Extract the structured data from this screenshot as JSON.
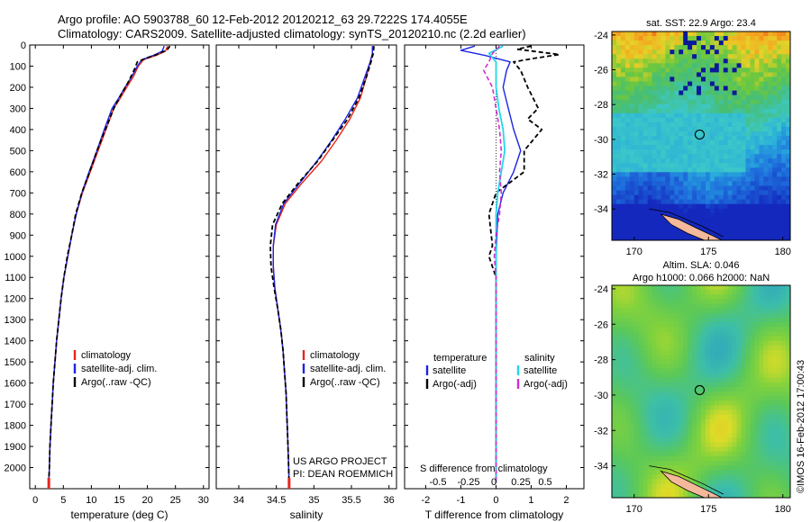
{
  "header": {
    "line1": "Argo profile: AO 5903788_60 12-Feb-2012 20120212_63 29.7222S 174.4055E",
    "line2": "Climatology: CARS2009. Satellite-adjusted climatology: synTS_20120210.nc (2.2d earlier)"
  },
  "colors": {
    "climatology": "#e8251b",
    "satellite": "#1c25e3",
    "argo": "#000000",
    "salinity_satellite": "#22d8e8",
    "salinity_argo": "#d12ed1",
    "land": "#f4b89a"
  },
  "chart_data": [
    {
      "id": "temperature",
      "type": "line",
      "xlabel": "temperature (deg C)",
      "xlim": [
        -1,
        31
      ],
      "xticks": [
        0,
        5,
        10,
        15,
        20,
        25,
        30
      ],
      "ylim": [
        2100,
        0
      ],
      "yticks": [
        0,
        100,
        200,
        300,
        400,
        500,
        600,
        700,
        800,
        900,
        1000,
        1100,
        1200,
        1300,
        1400,
        1500,
        1600,
        1700,
        1800,
        1900,
        2000
      ],
      "legend": [
        "climatology",
        "satellite-adj. clim.",
        "Argo(..raw -QC)"
      ],
      "series": [
        {
          "name": "climatology",
          "style": "red",
          "values": [
            [
              23.6,
              5
            ],
            [
              23.2,
              30
            ],
            [
              21.5,
              50
            ],
            [
              19.3,
              70
            ],
            [
              18.4,
              100
            ],
            [
              17.5,
              150
            ],
            [
              16.3,
              200
            ],
            [
              15.2,
              250
            ],
            [
              14.0,
              300
            ],
            [
              12.6,
              400
            ],
            [
              11.2,
              500
            ],
            [
              9.8,
              600
            ],
            [
              8.4,
              700
            ],
            [
              7.3,
              800
            ],
            [
              6.5,
              900
            ],
            [
              5.8,
              1000
            ],
            [
              5.1,
              1100
            ],
            [
              4.6,
              1200
            ],
            [
              4.2,
              1300
            ],
            [
              3.8,
              1400
            ],
            [
              3.5,
              1500
            ],
            [
              3.2,
              1600
            ],
            [
              3.0,
              1700
            ],
            [
              2.8,
              1800
            ],
            [
              2.6,
              1900
            ],
            [
              2.5,
              2000
            ],
            [
              2.4,
              2070
            ]
          ]
        },
        {
          "name": "satellite-adj. clim.",
          "style": "blue",
          "values": [
            [
              23.0,
              5
            ],
            [
              22.6,
              30
            ],
            [
              21.0,
              50
            ],
            [
              19.0,
              70
            ],
            [
              18.2,
              100
            ],
            [
              17.2,
              150
            ],
            [
              16.0,
              200
            ],
            [
              14.9,
              250
            ],
            [
              13.7,
              300
            ],
            [
              12.3,
              400
            ],
            [
              11.0,
              500
            ],
            [
              9.6,
              600
            ],
            [
              8.3,
              700
            ],
            [
              7.3,
              800
            ],
            [
              6.5,
              900
            ],
            [
              5.8,
              1000
            ],
            [
              5.1,
              1100
            ],
            [
              4.6,
              1200
            ],
            [
              4.2,
              1300
            ],
            [
              3.8,
              1400
            ],
            [
              3.5,
              1500
            ],
            [
              3.2,
              1600
            ],
            [
              3.0,
              1700
            ],
            [
              2.8,
              1800
            ],
            [
              2.6,
              1900
            ],
            [
              2.5,
              2000
            ],
            [
              2.4,
              2070
            ]
          ]
        },
        {
          "name": "Argo(..raw -QC)",
          "style": "black-dashed",
          "values": [
            [
              24.0,
              5
            ],
            [
              23.6,
              20
            ],
            [
              22.2,
              40
            ],
            [
              20.0,
              60
            ],
            [
              18.2,
              80
            ],
            [
              17.6,
              120
            ],
            [
              16.5,
              180
            ],
            [
              15.2,
              240
            ],
            [
              14.0,
              300
            ],
            [
              12.5,
              400
            ],
            [
              11.0,
              500
            ],
            [
              9.7,
              600
            ],
            [
              8.3,
              700
            ],
            [
              7.2,
              800
            ],
            [
              6.5,
              900
            ],
            [
              5.7,
              1000
            ],
            [
              5.1,
              1100
            ],
            [
              4.6,
              1200
            ],
            [
              4.2,
              1300
            ],
            [
              3.8,
              1400
            ],
            [
              3.5,
              1500
            ],
            [
              3.2,
              1600
            ],
            [
              3.0,
              1700
            ],
            [
              2.8,
              1800
            ],
            [
              2.6,
              1900
            ],
            [
              2.5,
              2000
            ],
            [
              2.4,
              2070
            ]
          ]
        }
      ]
    },
    {
      "id": "salinity",
      "type": "line",
      "xlabel": "salinity",
      "xlim": [
        33.7,
        36.1
      ],
      "xticks": [
        34,
        34.5,
        35,
        35.5,
        36
      ],
      "ylim": [
        2100,
        0
      ],
      "legend": [
        "climatology",
        "satellite-adj. clim.",
        "Argo(..raw -QC)"
      ],
      "annotation": [
        "US ARGO PROJECT",
        "PI: DEAN ROEMMICH"
      ],
      "series": [
        {
          "name": "climatology",
          "style": "red",
          "values": [
            [
              35.78,
              5
            ],
            [
              35.78,
              40
            ],
            [
              35.75,
              80
            ],
            [
              35.7,
              150
            ],
            [
              35.62,
              250
            ],
            [
              35.48,
              350
            ],
            [
              35.3,
              450
            ],
            [
              35.1,
              550
            ],
            [
              34.85,
              650
            ],
            [
              34.62,
              750
            ],
            [
              34.5,
              850
            ],
            [
              34.46,
              950
            ],
            [
              34.46,
              1050
            ],
            [
              34.48,
              1150
            ],
            [
              34.52,
              1250
            ],
            [
              34.56,
              1350
            ],
            [
              34.59,
              1450
            ],
            [
              34.61,
              1550
            ],
            [
              34.63,
              1650
            ],
            [
              34.64,
              1750
            ],
            [
              34.65,
              1850
            ],
            [
              34.66,
              1950
            ],
            [
              34.67,
              2070
            ]
          ]
        },
        {
          "name": "satellite-adj. clim.",
          "style": "blue",
          "values": [
            [
              35.78,
              5
            ],
            [
              35.78,
              40
            ],
            [
              35.75,
              80
            ],
            [
              35.68,
              150
            ],
            [
              35.58,
              250
            ],
            [
              35.42,
              350
            ],
            [
              35.24,
              450
            ],
            [
              35.04,
              550
            ],
            [
              34.82,
              650
            ],
            [
              34.6,
              750
            ],
            [
              34.49,
              850
            ],
            [
              34.46,
              950
            ],
            [
              34.46,
              1050
            ],
            [
              34.48,
              1150
            ],
            [
              34.52,
              1250
            ],
            [
              34.56,
              1350
            ],
            [
              34.59,
              1450
            ],
            [
              34.61,
              1550
            ],
            [
              34.63,
              1650
            ],
            [
              34.64,
              1750
            ],
            [
              34.65,
              1850
            ],
            [
              34.66,
              1950
            ],
            [
              34.67,
              2070
            ]
          ]
        },
        {
          "name": "Argo(..raw -QC)",
          "style": "black-dashed",
          "values": [
            [
              35.8,
              5
            ],
            [
              35.79,
              40
            ],
            [
              35.76,
              80
            ],
            [
              35.7,
              150
            ],
            [
              35.6,
              250
            ],
            [
              35.45,
              350
            ],
            [
              35.25,
              450
            ],
            [
              35.05,
              550
            ],
            [
              34.8,
              650
            ],
            [
              34.58,
              750
            ],
            [
              34.45,
              850
            ],
            [
              34.42,
              950
            ],
            [
              34.43,
              1050
            ],
            [
              34.47,
              1150
            ],
            [
              34.52,
              1250
            ],
            [
              34.56,
              1350
            ],
            [
              34.59,
              1450
            ],
            [
              34.61,
              1550
            ],
            [
              34.63,
              1650
            ],
            [
              34.64,
              1750
            ],
            [
              34.65,
              1850
            ],
            [
              34.66,
              1950
            ],
            [
              34.67,
              2070
            ]
          ]
        }
      ]
    },
    {
      "id": "differences",
      "type": "line",
      "xlabel": "T difference from climatology",
      "xlim": [
        -2.6,
        2.5
      ],
      "xticks": [
        -2,
        -1,
        0,
        1,
        2
      ],
      "xlabel_top": "S difference from climatology",
      "xticks_top": [
        -0.5,
        -0.25,
        0,
        0.25,
        0.5
      ],
      "xticks_top_labels": [
        "-0.5",
        "-0.25",
        "0",
        "0.25",
        "0.5"
      ],
      "ylim": [
        2100,
        0
      ],
      "legend_titles": [
        "temperature",
        "salinity"
      ],
      "legend_left": [
        "satellite",
        "Argo(-adj)"
      ],
      "legend_right": [
        "satellite",
        "Argo(-adj)"
      ],
      "series": [
        {
          "name": "temperature satellite",
          "style": "blue",
          "values": [
            [
              -0.6,
              5
            ],
            [
              -1.0,
              25
            ],
            [
              -0.3,
              50
            ],
            [
              0.4,
              80
            ],
            [
              0.3,
              120
            ],
            [
              0.2,
              200
            ],
            [
              0.35,
              300
            ],
            [
              0.5,
              400
            ],
            [
              0.7,
              500
            ],
            [
              0.5,
              600
            ],
            [
              0.2,
              700
            ],
            [
              0.05,
              800
            ],
            [
              0.0,
              1000
            ],
            [
              0.0,
              2070
            ]
          ]
        },
        {
          "name": "temperature Argo(-adj)",
          "style": "black-dashed",
          "values": [
            [
              1.0,
              5
            ],
            [
              0.6,
              20
            ],
            [
              1.8,
              45
            ],
            [
              1.2,
              60
            ],
            [
              0.5,
              80
            ],
            [
              0.7,
              120
            ],
            [
              0.9,
              200
            ],
            [
              1.2,
              300
            ],
            [
              0.9,
              350
            ],
            [
              1.3,
              400
            ],
            [
              0.8,
              500
            ],
            [
              0.8,
              600
            ],
            [
              0.0,
              700
            ],
            [
              -0.2,
              800
            ],
            [
              -0.1,
              950
            ],
            [
              -0.2,
              1000
            ],
            [
              0.0,
              1100
            ],
            [
              0.0,
              2070
            ]
          ]
        },
        {
          "name": "salinity satellite",
          "style": "cyan",
          "values": [
            [
              0.2,
              5
            ],
            [
              -0.2,
              40
            ],
            [
              0.0,
              80
            ],
            [
              0.0,
              200
            ],
            [
              0.08,
              300
            ],
            [
              0.2,
              400
            ],
            [
              0.25,
              500
            ],
            [
              0.15,
              600
            ],
            [
              0.05,
              700
            ],
            [
              0.0,
              800
            ],
            [
              0.0,
              2070
            ]
          ]
        },
        {
          "name": "salinity Argo(-adj)",
          "style": "magenta-dashed",
          "values": [
            [
              0.1,
              5
            ],
            [
              -0.1,
              40
            ],
            [
              -0.2,
              80
            ],
            [
              -0.35,
              120
            ],
            [
              -0.1,
              200
            ],
            [
              0.0,
              300
            ],
            [
              0.1,
              400
            ],
            [
              0.15,
              500
            ],
            [
              0.1,
              600
            ],
            [
              0.15,
              700
            ],
            [
              0.1,
              800
            ],
            [
              0.0,
              900
            ],
            [
              -0.05,
              1000
            ],
            [
              0.0,
              1100
            ],
            [
              0.0,
              2070
            ]
          ]
        }
      ]
    },
    {
      "id": "sst-map",
      "type": "heatmap",
      "title": "sat. SST: 22.9 Argo: 23.4",
      "xlim": [
        168.5,
        180.5
      ],
      "ylim": [
        -35.8,
        -23.8
      ],
      "xticks": [
        170,
        175,
        180
      ],
      "yticks": [
        -24,
        -26,
        -28,
        -30,
        -32,
        -34
      ],
      "argo_location": [
        174.4055,
        -29.7222
      ]
    },
    {
      "id": "sla-map",
      "type": "heatmap",
      "title_line1": "Altim. SLA: 0.046",
      "title_line2": "Argo h1000: 0.066 h2000: NaN",
      "xlim": [
        168.5,
        180.5
      ],
      "ylim": [
        -35.8,
        -23.8
      ],
      "xticks": [
        170,
        175,
        180
      ],
      "yticks": [
        -24,
        -26,
        -28,
        -30,
        -32,
        -34
      ],
      "argo_location": [
        174.4055,
        -29.7222
      ]
    }
  ],
  "credit": "©IMOS 16-Feb-2012 17:00:43"
}
